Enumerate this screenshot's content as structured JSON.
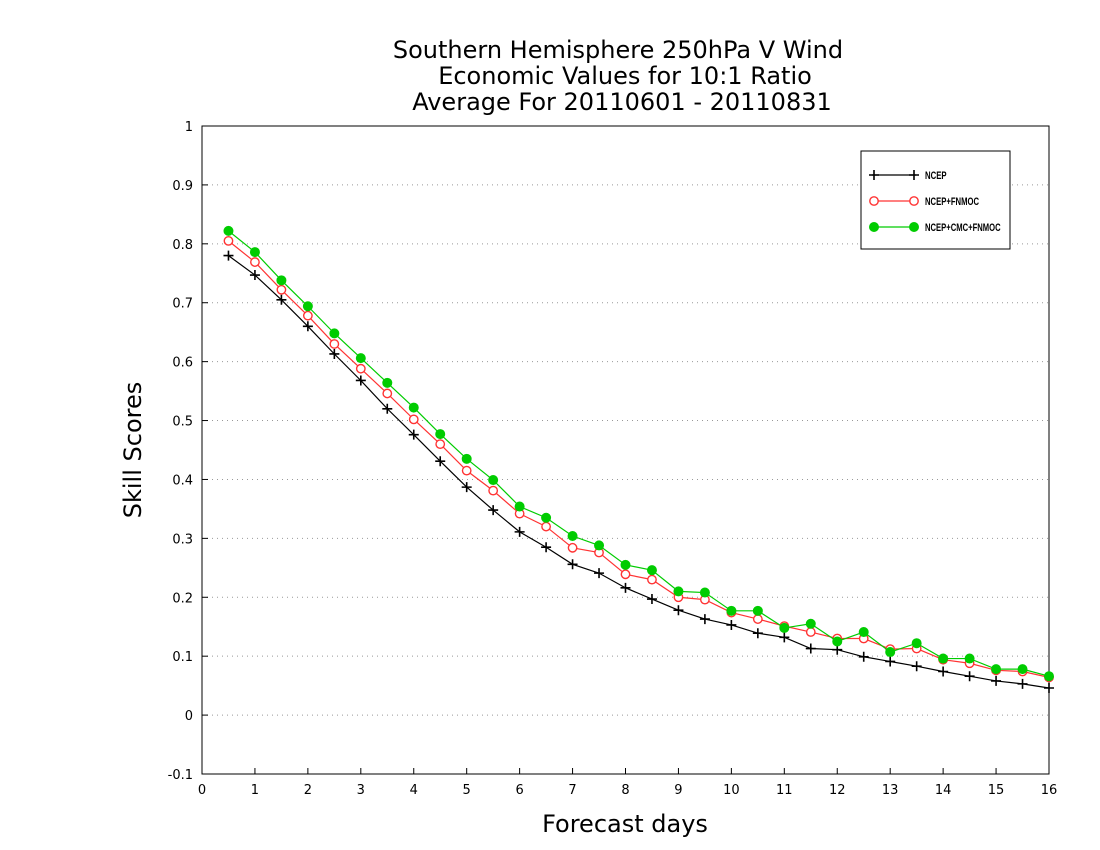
{
  "chart_data": {
    "type": "line",
    "title": [
      "Southern Hemisphere 250hPa V Wind",
      "Economic Values for 10:1 Ratio",
      "Average For 20110601 - 20110831"
    ],
    "xlabel": "Forecast days",
    "ylabel": "Skill Scores",
    "xlim": [
      0,
      16
    ],
    "ylim": [
      -0.1,
      1
    ],
    "xticks": [
      "0",
      "1",
      "2",
      "3",
      "4",
      "5",
      "6",
      "7",
      "8",
      "9",
      "10",
      "11",
      "12",
      "13",
      "14",
      "15",
      "16"
    ],
    "yticks": [
      "-0.1",
      "0",
      "0.1",
      "0.2",
      "0.3",
      "0.4",
      "0.5",
      "0.6",
      "0.7",
      "0.8",
      "0.9",
      "1"
    ],
    "grid": "horizontal-dotted",
    "legend_position": "top-right",
    "x": [
      0.5,
      1,
      1.5,
      2,
      2.5,
      3,
      3.5,
      4,
      4.5,
      5,
      5.5,
      6,
      6.5,
      7,
      7.5,
      8,
      8.5,
      9,
      9.5,
      10,
      10.5,
      11,
      11.5,
      12,
      12.5,
      13,
      13.5,
      14,
      14.5,
      15,
      15.5,
      16
    ],
    "series": [
      {
        "name": "NCEP",
        "color": "#000000",
        "marker": "plus",
        "values": [
          0.78,
          0.747,
          0.705,
          0.66,
          0.613,
          0.568,
          0.52,
          0.476,
          0.431,
          0.387,
          0.348,
          0.311,
          0.285,
          0.256,
          0.241,
          0.216,
          0.197,
          0.178,
          0.163,
          0.153,
          0.139,
          0.132,
          0.113,
          0.111,
          0.099,
          0.091,
          0.083,
          0.074,
          0.066,
          0.058,
          0.053,
          0.046
        ]
      },
      {
        "name": "NCEP+FNMOC",
        "color": "#ff3333",
        "marker": "open-circle",
        "values": [
          0.805,
          0.769,
          0.722,
          0.678,
          0.63,
          0.588,
          0.546,
          0.502,
          0.46,
          0.415,
          0.381,
          0.342,
          0.32,
          0.284,
          0.276,
          0.239,
          0.23,
          0.2,
          0.196,
          0.174,
          0.163,
          0.151,
          0.141,
          0.13,
          0.13,
          0.112,
          0.113,
          0.094,
          0.088,
          0.076,
          0.074,
          0.064
        ]
      },
      {
        "name": "NCEP+CMC+FNMOC",
        "color": "#00cc00",
        "marker": "filled-circle",
        "values": [
          0.822,
          0.786,
          0.738,
          0.694,
          0.648,
          0.606,
          0.564,
          0.522,
          0.477,
          0.435,
          0.399,
          0.354,
          0.335,
          0.304,
          0.288,
          0.255,
          0.246,
          0.21,
          0.208,
          0.177,
          0.177,
          0.148,
          0.155,
          0.125,
          0.141,
          0.107,
          0.122,
          0.096,
          0.096,
          0.078,
          0.078,
          0.066
        ]
      }
    ]
  }
}
